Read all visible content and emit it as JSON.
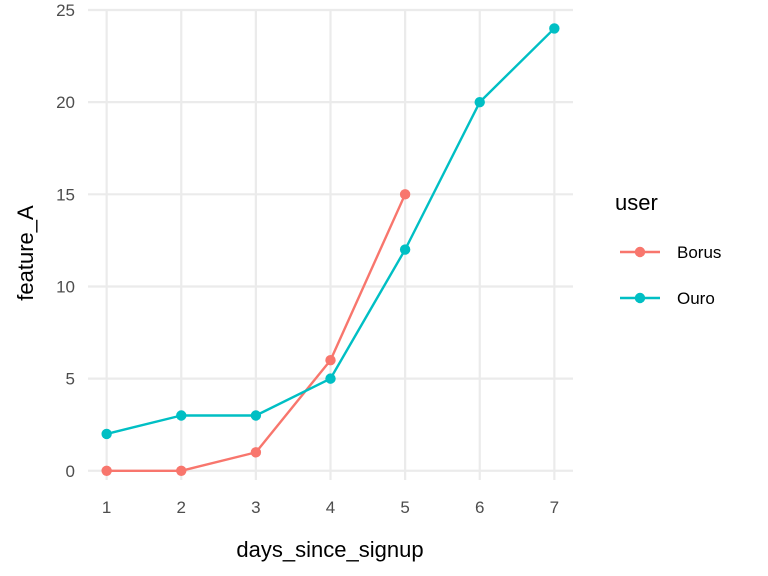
{
  "chart_data": {
    "type": "line",
    "xlabel": "days_since_signup",
    "ylabel": "feature_A",
    "xlim": [
      0.75,
      7.25
    ],
    "ylim": [
      -0.5,
      25
    ],
    "x_ticks": [
      1,
      2,
      3,
      4,
      5,
      6,
      7
    ],
    "y_ticks": [
      0,
      5,
      10,
      15,
      20,
      25
    ],
    "grid": true,
    "legend": {
      "title": "user",
      "placement": "right"
    },
    "series": [
      {
        "name": "Borus",
        "color": "#F8766D",
        "x": [
          1,
          2,
          3,
          4,
          5
        ],
        "y": [
          0,
          0,
          1,
          6,
          15
        ]
      },
      {
        "name": "Ouro",
        "color": "#00BFC4",
        "x": [
          1,
          2,
          3,
          4,
          5,
          6,
          7
        ],
        "y": [
          2,
          3,
          3,
          5,
          12,
          20,
          24
        ]
      }
    ]
  }
}
